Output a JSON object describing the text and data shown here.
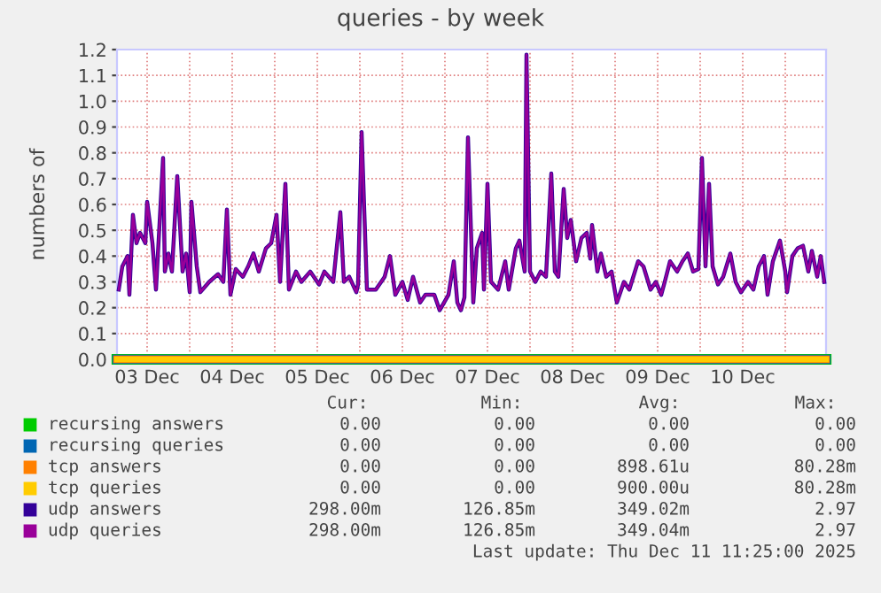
{
  "chart_data": {
    "type": "line",
    "title": "queries - by week",
    "ylabel": "numbers of",
    "xlim": [
      "2025-12-03T03:30",
      "2025-12-11T11:30"
    ],
    "xticks": [
      {
        "value": "2025-12-03T12:00",
        "label": "03 Dec"
      },
      {
        "value": "2025-12-04T00:00",
        "label": null
      },
      {
        "value": "2025-12-04T12:00",
        "label": "04 Dec"
      },
      {
        "value": "2025-12-05T00:00",
        "label": null
      },
      {
        "value": "2025-12-05T12:00",
        "label": "05 Dec"
      },
      {
        "value": "2025-12-06T00:00",
        "label": null
      },
      {
        "value": "2025-12-06T12:00",
        "label": "06 Dec"
      },
      {
        "value": "2025-12-07T00:00",
        "label": null
      },
      {
        "value": "2025-12-07T12:00",
        "label": "07 Dec"
      },
      {
        "value": "2025-12-08T00:00",
        "label": null
      },
      {
        "value": "2025-12-08T12:00",
        "label": "08 Dec"
      },
      {
        "value": "2025-12-09T00:00",
        "label": null
      },
      {
        "value": "2025-12-09T12:00",
        "label": "09 Dec"
      },
      {
        "value": "2025-12-10T00:00",
        "label": null
      },
      {
        "value": "2025-12-10T12:00",
        "label": "10 Dec"
      },
      {
        "value": "2025-12-11T00:00",
        "label": null
      }
    ],
    "ylim": [
      0,
      1.2
    ],
    "yticks": [
      {
        "value": 0,
        "label": "0.0"
      },
      {
        "value": 0.1,
        "label": "0.1"
      },
      {
        "value": 0.2,
        "label": "0.2"
      },
      {
        "value": 0.3,
        "label": "0.3"
      },
      {
        "value": 0.4,
        "label": "0.4"
      },
      {
        "value": 0.5,
        "label": "0.5"
      },
      {
        "value": 0.6,
        "label": "0.6"
      },
      {
        "value": 0.7,
        "label": "0.7"
      },
      {
        "value": 0.8,
        "label": "0.8"
      },
      {
        "value": 0.9,
        "label": "0.9"
      },
      {
        "value": 1.0,
        "label": "1.0"
      },
      {
        "value": 1.1,
        "label": "1.1"
      },
      {
        "value": 1.2,
        "label": "1.2"
      }
    ],
    "grid": true,
    "legend": "bottom",
    "x": [
      "2025-12-03T04:00",
      "2025-12-03T05:00",
      "2025-12-03T06:30",
      "2025-12-03T07:00",
      "2025-12-03T08:00",
      "2025-12-03T09:00",
      "2025-12-03T10:00",
      "2025-12-03T11:30",
      "2025-12-03T12:00",
      "2025-12-03T13:30",
      "2025-12-03T14:30",
      "2025-12-03T16:30",
      "2025-12-03T17:00",
      "2025-12-03T18:00",
      "2025-12-03T19:00",
      "2025-12-03T20:30",
      "2025-12-03T22:00",
      "2025-12-03T23:00",
      "2025-12-04T00:00",
      "2025-12-04T00:30",
      "2025-12-04T02:00",
      "2025-12-04T03:00",
      "2025-12-04T05:30",
      "2025-12-04T08:00",
      "2025-12-04T09:30",
      "2025-12-04T10:30",
      "2025-12-04T11:30",
      "2025-12-04T13:00",
      "2025-12-04T15:00",
      "2025-12-04T16:30",
      "2025-12-04T18:00",
      "2025-12-04T19:30",
      "2025-12-04T21:30",
      "2025-12-04T23:00",
      "2025-12-05T00:30",
      "2025-12-05T01:30",
      "2025-12-05T03:00",
      "2025-12-05T04:00",
      "2025-12-05T06:00",
      "2025-12-05T07:30",
      "2025-12-05T10:00",
      "2025-12-05T12:30",
      "2025-12-05T14:00",
      "2025-12-05T16:30",
      "2025-12-05T18:30",
      "2025-12-05T19:30",
      "2025-12-05T21:00",
      "2025-12-05T23:00",
      "2025-12-05T23:30",
      "2025-12-06T00:30",
      "2025-12-06T02:00",
      "2025-12-06T04:30",
      "2025-12-06T07:00",
      "2025-12-06T08:30",
      "2025-12-06T10:00",
      "2025-12-06T12:00",
      "2025-12-06T13:30",
      "2025-12-06T15:00",
      "2025-12-06T17:00",
      "2025-12-06T18:30",
      "2025-12-06T21:00",
      "2025-12-06T22:30",
      "2025-12-07T01:00",
      "2025-12-07T02:30",
      "2025-12-07T03:30",
      "2025-12-07T04:30",
      "2025-12-07T05:30",
      "2025-12-07T06:30",
      "2025-12-07T08:00",
      "2025-12-07T09:00",
      "2025-12-07T10:30",
      "2025-12-07T11:00",
      "2025-12-07T12:00",
      "2025-12-07T13:00",
      "2025-12-07T15:00",
      "2025-12-07T17:00",
      "2025-12-07T18:00",
      "2025-12-07T20:00",
      "2025-12-07T21:00",
      "2025-12-07T22:30",
      "2025-12-07T23:00",
      "2025-12-08T00:00",
      "2025-12-08T01:30",
      "2025-12-08T03:00",
      "2025-12-08T04:30",
      "2025-12-08T06:00",
      "2025-12-08T07:00",
      "2025-12-08T08:00",
      "2025-12-08T09:30",
      "2025-12-08T10:30",
      "2025-12-08T11:30",
      "2025-12-08T13:00",
      "2025-12-08T14:30",
      "2025-12-08T16:00",
      "2025-12-08T17:00",
      "2025-12-08T17:30",
      "2025-12-08T19:00",
      "2025-12-08T20:00",
      "2025-12-08T21:30",
      "2025-12-08T23:00",
      "2025-12-09T00:30",
      "2025-12-09T02:30",
      "2025-12-09T04:00",
      "2025-12-09T06:30",
      "2025-12-09T08:00",
      "2025-12-09T10:00",
      "2025-12-09T11:30",
      "2025-12-09T13:00",
      "2025-12-09T14:00",
      "2025-12-09T15:30",
      "2025-12-09T17:30",
      "2025-12-09T19:00",
      "2025-12-09T20:30",
      "2025-12-09T22:00",
      "2025-12-09T23:30",
      "2025-12-10T00:30",
      "2025-12-10T01:30",
      "2025-12-10T02:30",
      "2025-12-10T03:30",
      "2025-12-10T05:00",
      "2025-12-10T06:30",
      "2025-12-10T08:30",
      "2025-12-10T10:00",
      "2025-12-10T11:30",
      "2025-12-10T13:30",
      "2025-12-10T15:00",
      "2025-12-10T16:30",
      "2025-12-10T18:00",
      "2025-12-10T19:00",
      "2025-12-10T20:30",
      "2025-12-10T22:30",
      "2025-12-11T00:00",
      "2025-12-11T00:30",
      "2025-12-11T02:00",
      "2025-12-11T03:30",
      "2025-12-11T05:00",
      "2025-12-11T06:30",
      "2025-12-11T07:30",
      "2025-12-11T09:00",
      "2025-12-11T10:00",
      "2025-12-11T11:00"
    ],
    "series": [
      {
        "name": "recursing answers",
        "color": "#00cc00",
        "x": [
          "2025-12-03T03:30",
          "2025-12-11T11:30"
        ],
        "values": [
          0,
          0
        ]
      },
      {
        "name": "recursing queries",
        "color": "#0066b3",
        "x": [
          "2025-12-03T03:30",
          "2025-12-11T11:30"
        ],
        "values": [
          0,
          0
        ]
      },
      {
        "name": "tcp answers",
        "color": "#ff8000",
        "x": [
          "2025-12-03T03:30",
          "2025-12-11T11:30"
        ],
        "values": [
          0,
          0
        ]
      },
      {
        "name": "tcp queries",
        "color": "#ffcc00",
        "x": [
          "2025-12-03T03:30",
          "2025-12-11T11:30"
        ],
        "values": [
          0,
          0
        ]
      },
      {
        "name": "udp answers",
        "color": "#330099",
        "values": [
          0.27,
          0.36,
          0.4,
          0.25,
          0.56,
          0.45,
          0.49,
          0.45,
          0.61,
          0.45,
          0.27,
          0.78,
          0.34,
          0.41,
          0.34,
          0.71,
          0.34,
          0.41,
          0.26,
          0.61,
          0.36,
          0.26,
          0.3,
          0.33,
          0.3,
          0.58,
          0.25,
          0.35,
          0.32,
          0.36,
          0.41,
          0.34,
          0.43,
          0.45,
          0.56,
          0.3,
          0.68,
          0.27,
          0.34,
          0.3,
          0.34,
          0.29,
          0.34,
          0.3,
          0.57,
          0.3,
          0.32,
          0.26,
          0.29,
          0.88,
          0.27,
          0.27,
          0.32,
          0.4,
          0.25,
          0.3,
          0.23,
          0.32,
          0.22,
          0.25,
          0.25,
          0.19,
          0.25,
          0.38,
          0.22,
          0.19,
          0.24,
          0.86,
          0.22,
          0.43,
          0.49,
          0.27,
          0.68,
          0.3,
          0.27,
          0.38,
          0.27,
          0.43,
          0.46,
          0.34,
          1.18,
          0.34,
          0.3,
          0.34,
          0.32,
          0.72,
          0.34,
          0.32,
          0.66,
          0.47,
          0.54,
          0.38,
          0.47,
          0.49,
          0.39,
          0.52,
          0.34,
          0.41,
          0.32,
          0.34,
          0.22,
          0.3,
          0.27,
          0.38,
          0.36,
          0.27,
          0.3,
          0.25,
          0.3,
          0.38,
          0.34,
          0.38,
          0.41,
          0.34,
          0.35,
          0.78,
          0.36,
          0.68,
          0.36,
          0.29,
          0.32,
          0.41,
          0.3,
          0.26,
          0.3,
          0.27,
          0.36,
          0.4,
          0.25,
          0.38,
          0.46,
          0.34,
          0.26,
          0.4,
          0.43,
          0.44,
          0.34,
          0.42,
          0.32,
          0.4,
          0.3
        ]
      },
      {
        "name": "udp queries",
        "color": "#990099",
        "values": [
          0.27,
          0.36,
          0.4,
          0.25,
          0.56,
          0.45,
          0.49,
          0.45,
          0.61,
          0.45,
          0.27,
          0.78,
          0.34,
          0.41,
          0.34,
          0.71,
          0.34,
          0.41,
          0.26,
          0.61,
          0.36,
          0.26,
          0.3,
          0.33,
          0.3,
          0.58,
          0.25,
          0.35,
          0.32,
          0.36,
          0.41,
          0.34,
          0.43,
          0.45,
          0.56,
          0.3,
          0.68,
          0.27,
          0.34,
          0.3,
          0.34,
          0.29,
          0.34,
          0.3,
          0.57,
          0.3,
          0.32,
          0.26,
          0.29,
          0.88,
          0.27,
          0.27,
          0.32,
          0.4,
          0.25,
          0.3,
          0.23,
          0.32,
          0.22,
          0.25,
          0.25,
          0.19,
          0.25,
          0.38,
          0.22,
          0.19,
          0.24,
          0.86,
          0.22,
          0.43,
          0.49,
          0.27,
          0.68,
          0.3,
          0.27,
          0.38,
          0.27,
          0.43,
          0.46,
          0.34,
          1.18,
          0.34,
          0.3,
          0.34,
          0.32,
          0.72,
          0.34,
          0.32,
          0.66,
          0.47,
          0.54,
          0.38,
          0.47,
          0.49,
          0.39,
          0.52,
          0.34,
          0.41,
          0.32,
          0.34,
          0.22,
          0.3,
          0.27,
          0.38,
          0.36,
          0.27,
          0.3,
          0.25,
          0.3,
          0.38,
          0.34,
          0.38,
          0.41,
          0.34,
          0.35,
          0.78,
          0.36,
          0.68,
          0.36,
          0.29,
          0.32,
          0.41,
          0.3,
          0.26,
          0.3,
          0.27,
          0.36,
          0.4,
          0.25,
          0.38,
          0.46,
          0.34,
          0.26,
          0.4,
          0.43,
          0.44,
          0.34,
          0.42,
          0.32,
          0.4,
          0.3
        ]
      }
    ],
    "annotations": [
      "Cur:",
      "Min:",
      "Avg:",
      "Max:",
      "0.00",
      "0.00",
      "0.00",
      "0.00",
      "0.00",
      "0.00",
      "0.00",
      "0.00",
      "0.00",
      "0.00",
      "898.61u",
      "80.28m",
      "0.00",
      "0.00",
      "900.00u",
      "80.28m",
      "298.00m",
      "126.85m",
      "349.02m",
      "2.97",
      "298.00m",
      "126.85m",
      "349.04m",
      "2.97",
      "Last update: Thu Dec 11 11:25:00 2025"
    ]
  }
}
